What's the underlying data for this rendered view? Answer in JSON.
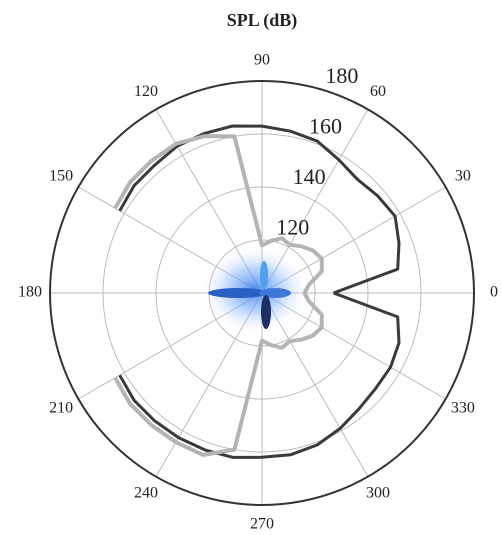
{
  "chart_data": {
    "type": "polar",
    "title": "SPL (dB)",
    "x": [
      0,
      10,
      20,
      30,
      40,
      50,
      60,
      70,
      80,
      90,
      100,
      110,
      120,
      130,
      140,
      150,
      160,
      170,
      180,
      190,
      200,
      210,
      220,
      230,
      240,
      250,
      260,
      270,
      280,
      290,
      300,
      310,
      320,
      330,
      340,
      350,
      360
    ],
    "series": [
      {
        "color": "#3a3a3a",
        "values": [
          127,
          152,
          155,
          158,
          157,
          156,
          158,
          161,
          162,
          163,
          164,
          164,
          164,
          163,
          163,
          162,
          null,
          null,
          null,
          null,
          null,
          162,
          163,
          163,
          163,
          163,
          163,
          162,
          162,
          161,
          159,
          157,
          156,
          156,
          155,
          152,
          127
        ]
      },
      {
        "color": "#b4b4b4",
        "values": [
          116,
          118,
          124,
          126,
          125,
          123,
          121,
          122,
          120,
          118,
          160,
          163,
          165,
          165,
          165,
          164,
          null,
          null,
          null,
          null,
          null,
          164,
          165,
          165,
          165,
          165,
          160,
          118,
          120,
          122,
          121,
          123,
          125,
          126,
          124,
          118,
          116
        ]
      }
    ],
    "rlim": [
      100,
      180
    ],
    "rticks": [
      120,
      140,
      160,
      180
    ],
    "thetaticks": [
      0,
      30,
      60,
      90,
      120,
      150,
      180,
      210,
      240,
      270,
      300,
      330
    ],
    "grid": true
  }
}
